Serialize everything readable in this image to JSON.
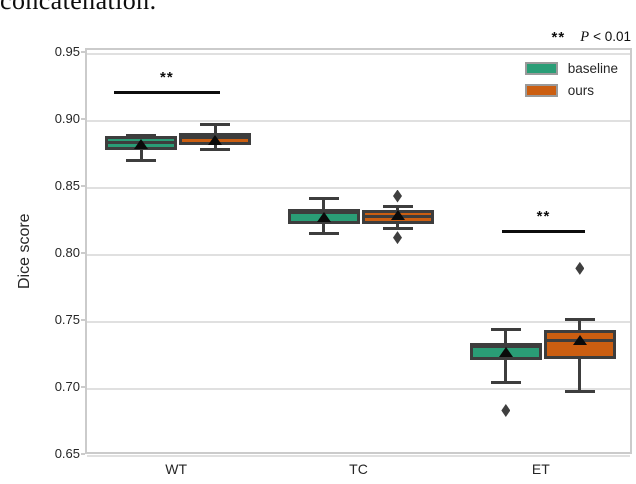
{
  "document_fragment": {
    "text": "concatenation."
  },
  "chart_data": {
    "type": "boxplot",
    "title": "",
    "xlabel": "",
    "ylabel": "Dice score",
    "categories": [
      "WT",
      "TC",
      "ET"
    ],
    "ylim": [
      0.65,
      0.953
    ],
    "yticks": [
      0.95,
      0.9,
      0.85,
      0.8,
      0.75,
      0.7,
      0.65
    ],
    "grid": "horizontal-light",
    "colors": {
      "baseline": "#2a9d76",
      "ours": "#cb5e11",
      "box_edge": "#3d3d3d",
      "median": "#3d3d3d",
      "mean_marker": "#0a0a0a",
      "outlier": "#3f3f3f",
      "gridline": "#e0e0e0",
      "axis_border": "#cbcbcb"
    },
    "legend": {
      "position": "upper right",
      "entries": [
        {
          "label": "baseline",
          "color": "#2a9d76"
        },
        {
          "label": "ours",
          "color": "#cb5e11"
        }
      ]
    },
    "series": [
      {
        "name": "baseline",
        "color": "#2a9d76",
        "boxes": [
          {
            "category": "WT",
            "whislo": 0.8705,
            "q1": 0.8785,
            "med": 0.884,
            "q3": 0.889,
            "whishi": 0.889,
            "mean": 0.8825,
            "outliers": []
          },
          {
            "category": "TC",
            "whislo": 0.816,
            "q1": 0.8235,
            "med": 0.832,
            "q3": 0.834,
            "whishi": 0.8425,
            "mean": 0.8285,
            "outliers": []
          },
          {
            "category": "ET",
            "whislo": 0.705,
            "q1": 0.7215,
            "med": 0.7315,
            "q3": 0.734,
            "whishi": 0.7445,
            "mean": 0.7275,
            "outliers": [
              0.684
            ]
          }
        ]
      },
      {
        "name": "ours",
        "color": "#cb5e11",
        "boxes": [
          {
            "category": "WT",
            "whislo": 0.8785,
            "q1": 0.882,
            "med": 0.8875,
            "q3": 0.891,
            "whishi": 0.8975,
            "mean": 0.886,
            "outliers": []
          },
          {
            "category": "TC",
            "whislo": 0.82,
            "q1": 0.8235,
            "med": 0.829,
            "q3": 0.8335,
            "whishi": 0.836,
            "mean": 0.8295,
            "outliers": [
              0.844,
              0.813
            ]
          },
          {
            "category": "ET",
            "whislo": 0.698,
            "q1": 0.7225,
            "med": 0.736,
            "q3": 0.744,
            "whishi": 0.752,
            "mean": 0.7365,
            "outliers": [
              0.79
            ]
          }
        ]
      }
    ],
    "annotations": {
      "note": {
        "stars": "**",
        "p_symbol": "P",
        "p_rest": "< 0.01"
      },
      "sig_bars": [
        {
          "group": "WT",
          "between": [
            "baseline",
            "ours"
          ],
          "stars": "**",
          "y_value": 0.921,
          "x1_frac": 0.049,
          "x2_frac": 0.243
        },
        {
          "group": "ET",
          "between": [
            "baseline",
            "ours"
          ],
          "stars": "**",
          "y_value": 0.8175,
          "x1_frac": 0.759,
          "x2_frac": 0.91
        }
      ]
    }
  }
}
